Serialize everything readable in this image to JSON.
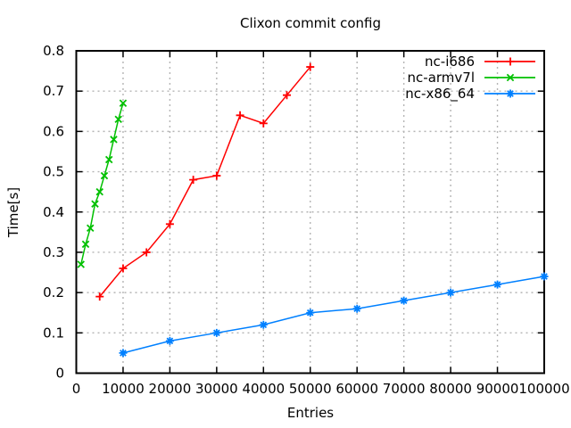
{
  "chart_data": {
    "type": "line",
    "title": "Clixon commit config",
    "xlabel": "Entries",
    "ylabel": "Time[s]",
    "xlim": [
      0,
      100000
    ],
    "ylim": [
      0,
      0.8
    ],
    "grid": true,
    "legend_position": "top-right-inside",
    "x_ticks": [
      {
        "value": 0,
        "label": "0"
      },
      {
        "value": 10000,
        "label": "10000"
      },
      {
        "value": 20000,
        "label": "20000"
      },
      {
        "value": 30000,
        "label": "30000"
      },
      {
        "value": 40000,
        "label": "40000"
      },
      {
        "value": 50000,
        "label": "50000"
      },
      {
        "value": 60000,
        "label": "60000"
      },
      {
        "value": 70000,
        "label": "70000"
      },
      {
        "value": 80000,
        "label": "80000"
      },
      {
        "value": 90000,
        "label": "90000"
      },
      {
        "value": 100000,
        "label": "100000"
      }
    ],
    "y_ticks": [
      {
        "value": 0.0,
        "label": "0"
      },
      {
        "value": 0.1,
        "label": "0.1"
      },
      {
        "value": 0.2,
        "label": "0.2"
      },
      {
        "value": 0.3,
        "label": "0.3"
      },
      {
        "value": 0.4,
        "label": "0.4"
      },
      {
        "value": 0.5,
        "label": "0.5"
      },
      {
        "value": 0.6,
        "label": "0.6"
      },
      {
        "value": 0.7,
        "label": "0.7"
      },
      {
        "value": 0.8,
        "label": "0.8"
      }
    ],
    "series": [
      {
        "name": "nc-i686",
        "color": "#ff0000",
        "marker": "plus",
        "x": [
          5000,
          10000,
          15000,
          20000,
          25000,
          30000,
          35000,
          40000,
          45000,
          50000
        ],
        "y": [
          0.19,
          0.26,
          0.3,
          0.37,
          0.48,
          0.49,
          0.64,
          0.62,
          0.69,
          0.76
        ]
      },
      {
        "name": "nc-armv7l",
        "color": "#00c000",
        "marker": "cross",
        "x": [
          1000,
          2000,
          3000,
          4000,
          5000,
          6000,
          7000,
          8000,
          9000,
          10000
        ],
        "y": [
          0.27,
          0.32,
          0.36,
          0.42,
          0.45,
          0.49,
          0.53,
          0.58,
          0.63,
          0.67
        ]
      },
      {
        "name": "nc-x86_64",
        "color": "#0080ff",
        "marker": "asterisk",
        "x": [
          10000,
          20000,
          30000,
          40000,
          50000,
          60000,
          70000,
          80000,
          90000,
          100000
        ],
        "y": [
          0.05,
          0.08,
          0.1,
          0.12,
          0.15,
          0.16,
          0.18,
          0.2,
          0.22,
          0.24
        ]
      }
    ],
    "colors": {
      "frame": "#000000",
      "grid": "#b4b4b4",
      "text": "#000000",
      "background": "#ffffff"
    }
  }
}
